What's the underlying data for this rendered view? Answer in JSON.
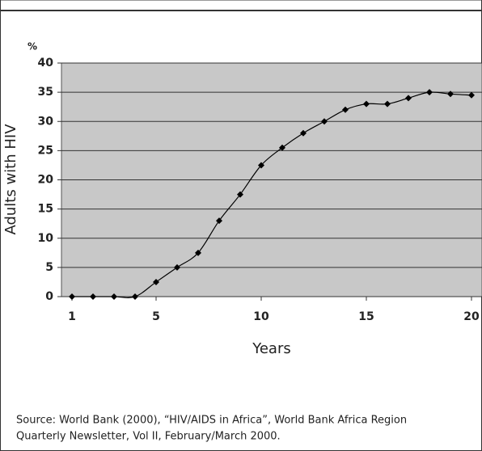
{
  "chart_data": {
    "type": "line",
    "y_unit": "%",
    "ylabel": "Adults with HIV",
    "xlabel": "Years",
    "x": [
      1,
      2,
      3,
      4,
      5,
      6,
      7,
      8,
      9,
      10,
      11,
      12,
      13,
      14,
      15,
      16,
      17,
      18,
      19,
      20
    ],
    "series": [
      {
        "color": "#000000",
        "values": [
          0,
          0,
          0,
          0,
          2.5,
          5,
          7.5,
          13,
          17.5,
          22.5,
          25.5,
          28,
          30,
          32,
          33,
          33,
          34,
          35,
          34.7,
          34.5
        ]
      }
    ],
    "xlim": [
      0.5,
      20.5
    ],
    "xticks": [
      1,
      5,
      10,
      15,
      20
    ],
    "ylim": [
      0,
      40
    ],
    "yticks": [
      0,
      5,
      10,
      15,
      20,
      25,
      30,
      35,
      40
    ],
    "grid": true,
    "source": [
      "Source: World Bank (2000), “HIV/AIDS in Africa”, World Bank Africa Region",
      "Quarterly Newsletter, Vol II, February/March 2000."
    ]
  }
}
